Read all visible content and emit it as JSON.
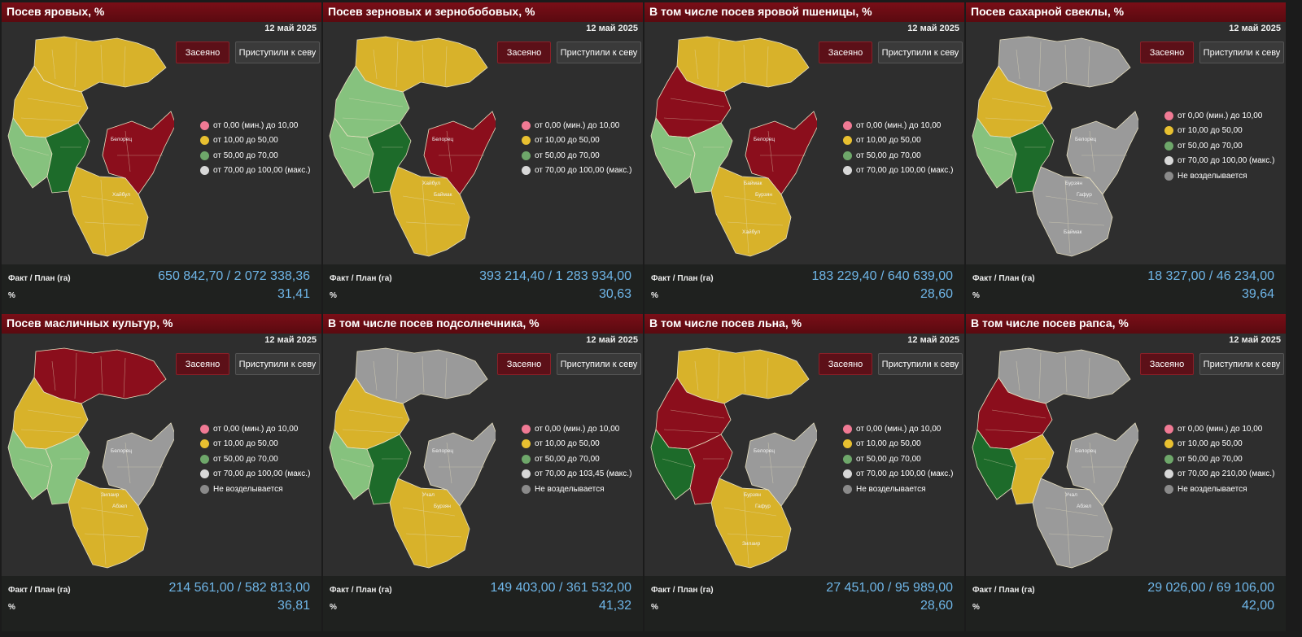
{
  "colors": {
    "red": "#8b0e1c",
    "yellow": "#d8b22a",
    "lightgreen": "#86c27e",
    "darkgreen": "#1d6b2a",
    "grey": "#9a9a9a",
    "pink": "#f07a94",
    "legend_yellow": "#e8c030",
    "legend_green": "#6ea76a",
    "legend_white": "#d8d8d8",
    "legend_grey": "#8a8a8a"
  },
  "common": {
    "date": "12 май 2025",
    "sown": "Засеяно",
    "started": "Приступили к севу",
    "fact_plan": "Факт / План (га)",
    "percent": "%"
  },
  "legend_common": [
    "от 0,00 (мин.) до 10,00",
    "от 10,00 до 50,00",
    "от 50,00 до 70,00"
  ],
  "not_cultivated": "Не возделывается",
  "panels": [
    {
      "title": "Посев яровых, %",
      "legend_max": "от 70,00 до 100,00 (макс.)",
      "fact_plan": "650 842,70 / 2 072 338,36",
      "percent": "31,41",
      "scheme": [
        "yellow",
        "yellow",
        "red",
        "yellow",
        "lightgreen",
        "darkgreen"
      ],
      "map_labels": [
        "Белорец",
        "Хайбул"
      ]
    },
    {
      "title": "Посев зерновых и зернобобовых, %",
      "legend_max": "от 70,00 до 100,00 (макс.)",
      "fact_plan": "393 214,40 / 1 283 934,00",
      "percent": "30,63",
      "scheme": [
        "yellow",
        "lightgreen",
        "red",
        "yellow",
        "lightgreen",
        "darkgreen"
      ],
      "map_labels": [
        "Белорец",
        "Баймак",
        "Хайбул"
      ]
    },
    {
      "title": "В том числе посев яровой пшеницы, %",
      "legend_max": "от 70,00 до 100,00 (макс.)",
      "fact_plan": "183 229,40 / 640 639,00",
      "percent": "28,60",
      "scheme": [
        "yellow",
        "red",
        "red",
        "yellow",
        "lightgreen",
        "lightgreen"
      ],
      "map_labels": [
        "Белорец",
        "Бурзян",
        "Баймак",
        "Хайбул"
      ]
    },
    {
      "title": "Посев сахарной свеклы, %",
      "legend_max": "от 70,00 до 100,00 (макс.)",
      "fact_plan": "18 327,00 / 46 234,00",
      "percent": "39,64",
      "scheme": [
        "grey",
        "yellow",
        "grey",
        "grey",
        "lightgreen",
        "darkgreen"
      ],
      "map_labels": [
        "Белорец",
        "Гафур",
        "Бурзян",
        "Баймак"
      ]
    },
    {
      "title": "Посев масличных культур, %",
      "legend_max": "от 70,00 до 100,00 (макс.)",
      "fact_plan": "214 561,00 / 582 813,00",
      "percent": "36,81",
      "scheme": [
        "red",
        "yellow",
        "grey",
        "yellow",
        "lightgreen",
        "lightgreen"
      ],
      "map_labels": [
        "Белорец",
        "Абзел",
        "Зилаир"
      ]
    },
    {
      "title": "В том числе посев подсолнечника, %",
      "legend_max": "от 70,00 до 103,45 (макс.)",
      "fact_plan": "149 403,00 / 361 532,00",
      "percent": "41,32",
      "scheme": [
        "grey",
        "yellow",
        "grey",
        "yellow",
        "lightgreen",
        "darkgreen"
      ],
      "map_labels": [
        "Белорец",
        "Бурзян",
        "Учал"
      ]
    },
    {
      "title": "В том числе посев льна, %",
      "legend_max": "от 70,00 до 100,00 (макс.)",
      "fact_plan": "27 451,00 / 95 989,00",
      "percent": "28,60",
      "scheme": [
        "yellow",
        "red",
        "grey",
        "yellow",
        "darkgreen",
        "red"
      ],
      "map_labels": [
        "Белорец",
        "Гафур",
        "Бурзян",
        "Зилаир"
      ]
    },
    {
      "title": "В том числе посев рапса, %",
      "legend_max": "от 70,00 до 210,00 (макс.)",
      "fact_plan": "29 026,00 / 69 106,00",
      "percent": "42,00",
      "scheme": [
        "grey",
        "red",
        "grey",
        "grey",
        "darkgreen",
        "yellow"
      ],
      "map_labels": [
        "Белорец",
        "Абзел",
        "Учал"
      ]
    }
  ]
}
